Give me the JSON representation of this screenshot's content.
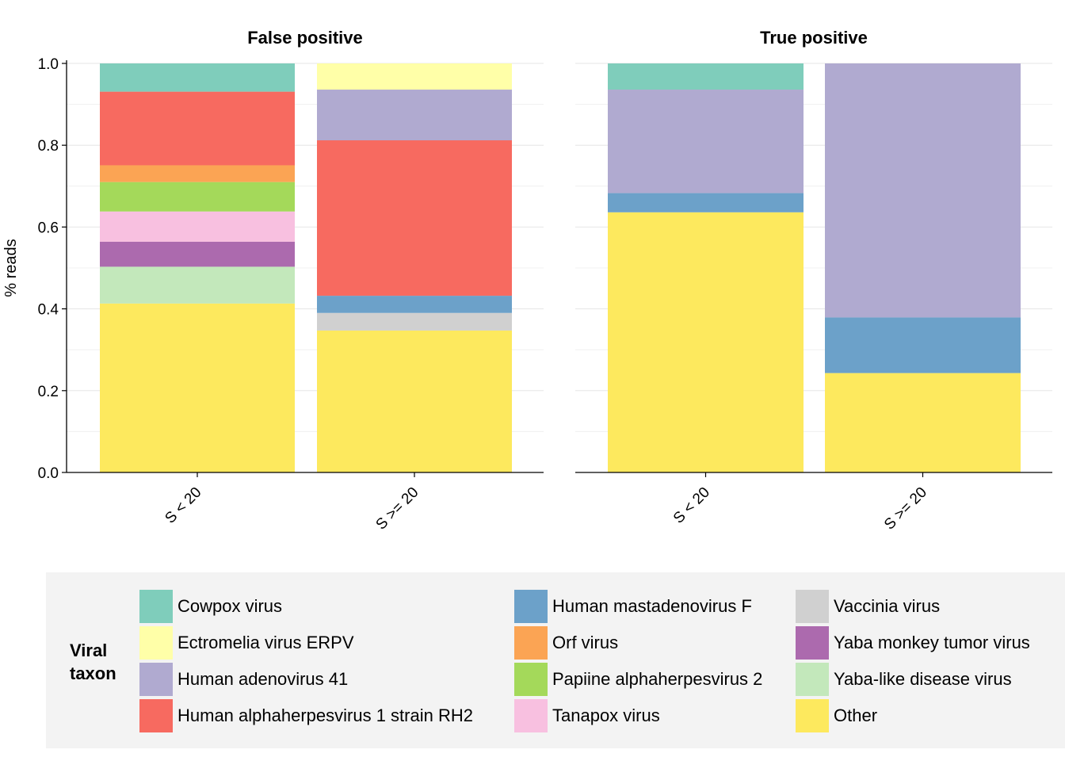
{
  "chart_data": {
    "type": "bar",
    "stacked": true,
    "ylabel": "% reads",
    "ylim": [
      0,
      1
    ],
    "yticks": [
      "0.0",
      "0.2",
      "0.4",
      "0.6",
      "0.8",
      "1.0"
    ],
    "categories": [
      "S < 20",
      "S >= 20"
    ],
    "panels": [
      {
        "title": "False positive",
        "bars": [
          {
            "category": "S < 20",
            "segments": [
              {
                "taxon": "Other",
                "value": 0.413
              },
              {
                "taxon": "Yaba-like disease virus",
                "value": 0.09
              },
              {
                "taxon": "Yaba monkey tumor virus",
                "value": 0.061
              },
              {
                "taxon": "Tanapox virus",
                "value": 0.074
              },
              {
                "taxon": "Papiine alphaherpesvirus 2",
                "value": 0.072
              },
              {
                "taxon": "Orf virus",
                "value": 0.041
              },
              {
                "taxon": "Human alphaherpesvirus 1 strain RH2",
                "value": 0.18
              },
              {
                "taxon": "Cowpox virus",
                "value": 0.069
              }
            ]
          },
          {
            "category": "S >= 20",
            "segments": [
              {
                "taxon": "Other",
                "value": 0.347
              },
              {
                "taxon": "Vaccinia virus",
                "value": 0.043
              },
              {
                "taxon": "Human mastadenovirus F",
                "value": 0.042
              },
              {
                "taxon": "Human alphaherpesvirus 1 strain RH2",
                "value": 0.38
              },
              {
                "taxon": "Human adenovirus 41",
                "value": 0.124
              },
              {
                "taxon": "Ectromelia virus ERPV",
                "value": 0.064
              }
            ]
          }
        ]
      },
      {
        "title": "True positive",
        "bars": [
          {
            "category": "S < 20",
            "segments": [
              {
                "taxon": "Other",
                "value": 0.636
              },
              {
                "taxon": "Human mastadenovirus F",
                "value": 0.047
              },
              {
                "taxon": "Human adenovirus 41",
                "value": 0.253
              },
              {
                "taxon": "Cowpox virus",
                "value": 0.064
              }
            ]
          },
          {
            "category": "S >= 20",
            "segments": [
              {
                "taxon": "Other",
                "value": 0.243
              },
              {
                "taxon": "Human mastadenovirus F",
                "value": 0.136
              },
              {
                "taxon": "Human adenovirus 41",
                "value": 0.621
              }
            ]
          }
        ]
      }
    ]
  },
  "legend": {
    "title_line1": "Viral",
    "title_line2": "taxon",
    "position": "bottom",
    "columns": [
      [
        {
          "label": "Cowpox virus",
          "color": "#7fcdbb"
        },
        {
          "label": "Ectromelia virus ERPV",
          "color": "#ffffa8"
        },
        {
          "label": "Human adenovirus 41",
          "color": "#b0aad0"
        },
        {
          "label": "Human alphaherpesvirus 1 strain RH2",
          "color": "#f76a60"
        }
      ],
      [
        {
          "label": "Human mastadenovirus F",
          "color": "#6ca1c9"
        },
        {
          "label": "Orf virus",
          "color": "#fba454"
        },
        {
          "label": "Papiine alphaherpesvirus 2",
          "color": "#a4d95a"
        },
        {
          "label": "Tanapox virus",
          "color": "#f8c0e0"
        }
      ],
      [
        {
          "label": "Vaccinia virus",
          "color": "#d0d0d0"
        },
        {
          "label": "Yaba monkey tumor virus",
          "color": "#ac6aae"
        },
        {
          "label": "Yaba-like disease virus",
          "color": "#c3e8bb"
        },
        {
          "label": "Other",
          "color": "#fde95e"
        }
      ]
    ]
  }
}
